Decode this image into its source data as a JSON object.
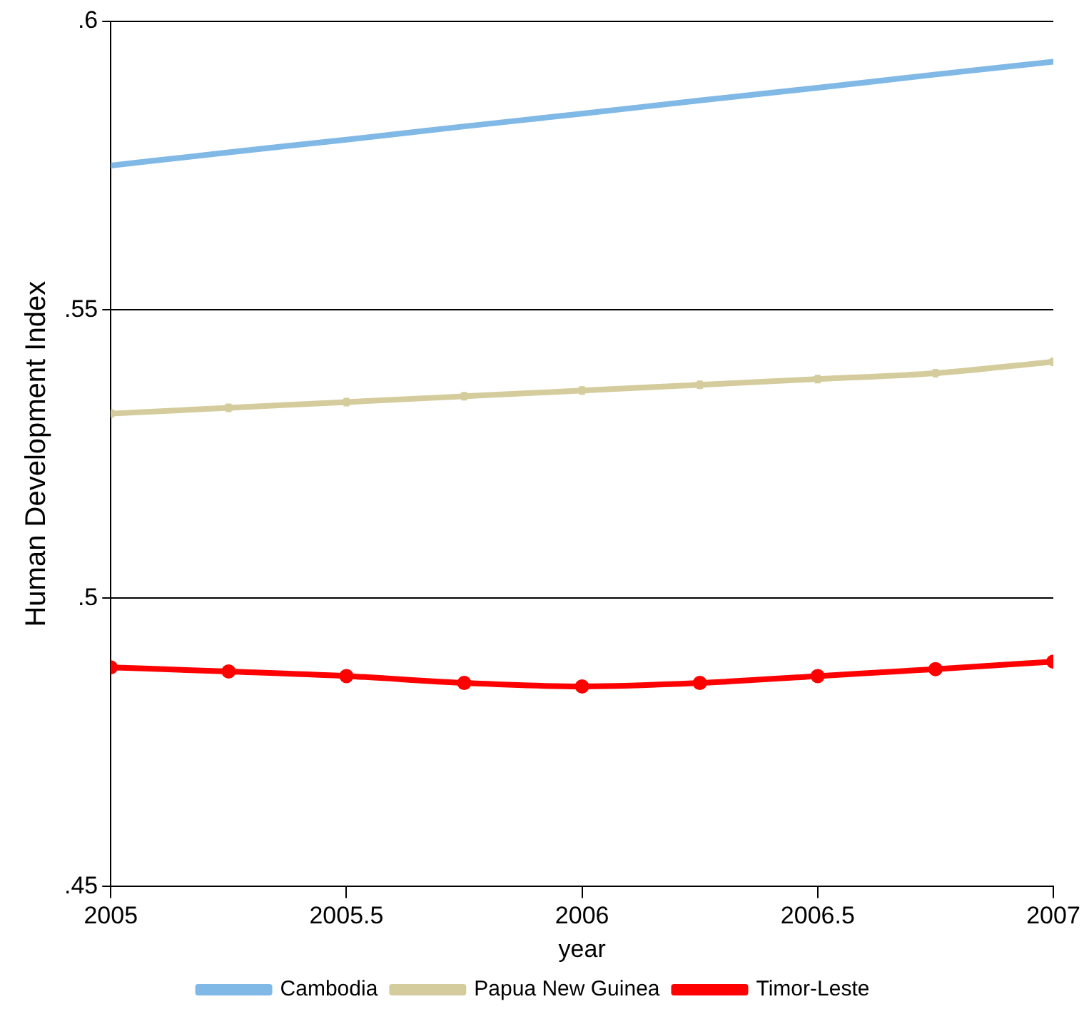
{
  "chart_data": {
    "type": "line",
    "xlabel": "year",
    "ylabel": "Human Development Index",
    "xlim": [
      2005,
      2007
    ],
    "xticks": [
      2005,
      2005.5,
      2006,
      2006.5,
      2007
    ],
    "ylim": [
      0.45,
      0.6
    ],
    "yticks": [
      {
        "value": 0.45,
        "label": ".45"
      },
      {
        "value": 0.5,
        "label": ".5"
      },
      {
        "value": 0.55,
        "label": ".55"
      },
      {
        "value": 0.6,
        "label": ".6"
      }
    ],
    "grid": "y",
    "legend": "bottom",
    "line_style": "solid",
    "series": [
      {
        "name": "Cambodia",
        "color": "#80b8e6",
        "marker": "none",
        "x": [
          2005,
          2005.25,
          2005.5,
          2005.75,
          2006,
          2006.25,
          2006.5,
          2006.75,
          2007
        ],
        "values": [
          0.575,
          0.5773,
          0.5795,
          0.5818,
          0.584,
          0.5863,
          0.5885,
          0.5908,
          0.593
        ]
      },
      {
        "name": "Papua New Guinea",
        "color": "#d4cc9c",
        "marker": "cross",
        "x": [
          2005,
          2005.25,
          2005.5,
          2005.75,
          2006,
          2006.25,
          2006.5,
          2006.75,
          2007
        ],
        "values": [
          0.532,
          0.533,
          0.534,
          0.535,
          0.536,
          0.537,
          0.538,
          0.539,
          0.541
        ]
      },
      {
        "name": "Timor-Leste",
        "color": "#ff0000",
        "marker": "circle",
        "x": [
          2005,
          2005.25,
          2005.5,
          2005.75,
          2006,
          2006.25,
          2006.5,
          2006.75,
          2007
        ],
        "values": [
          0.488,
          0.4873,
          0.4865,
          0.4853,
          0.4847,
          0.4853,
          0.4865,
          0.4877,
          0.489
        ]
      }
    ]
  }
}
